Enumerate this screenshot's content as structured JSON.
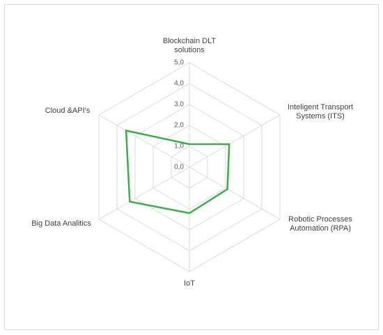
{
  "chart_data": {
    "type": "radar",
    "categories": [
      "Blockchain DLT solutions",
      "Inteligent Transport Systems (ITS)",
      "Robotic Processes Automation (RPA)",
      "IoT",
      "Big Data Analitics",
      "Cloud &API's"
    ],
    "values": [
      1.1,
      2.2,
      2.1,
      2.2,
      3.3,
      3.5
    ],
    "color": "#3dab4b",
    "ylim": [
      0,
      5
    ],
    "yticks": [
      {
        "value": 0,
        "label": "0,0"
      },
      {
        "value": 1,
        "label": "1,0"
      },
      {
        "value": 2,
        "label": "2,0"
      },
      {
        "value": 3,
        "label": "3,0"
      },
      {
        "value": 4,
        "label": "4,0"
      },
      {
        "value": 5,
        "label": "5,0"
      }
    ],
    "grid": true
  }
}
